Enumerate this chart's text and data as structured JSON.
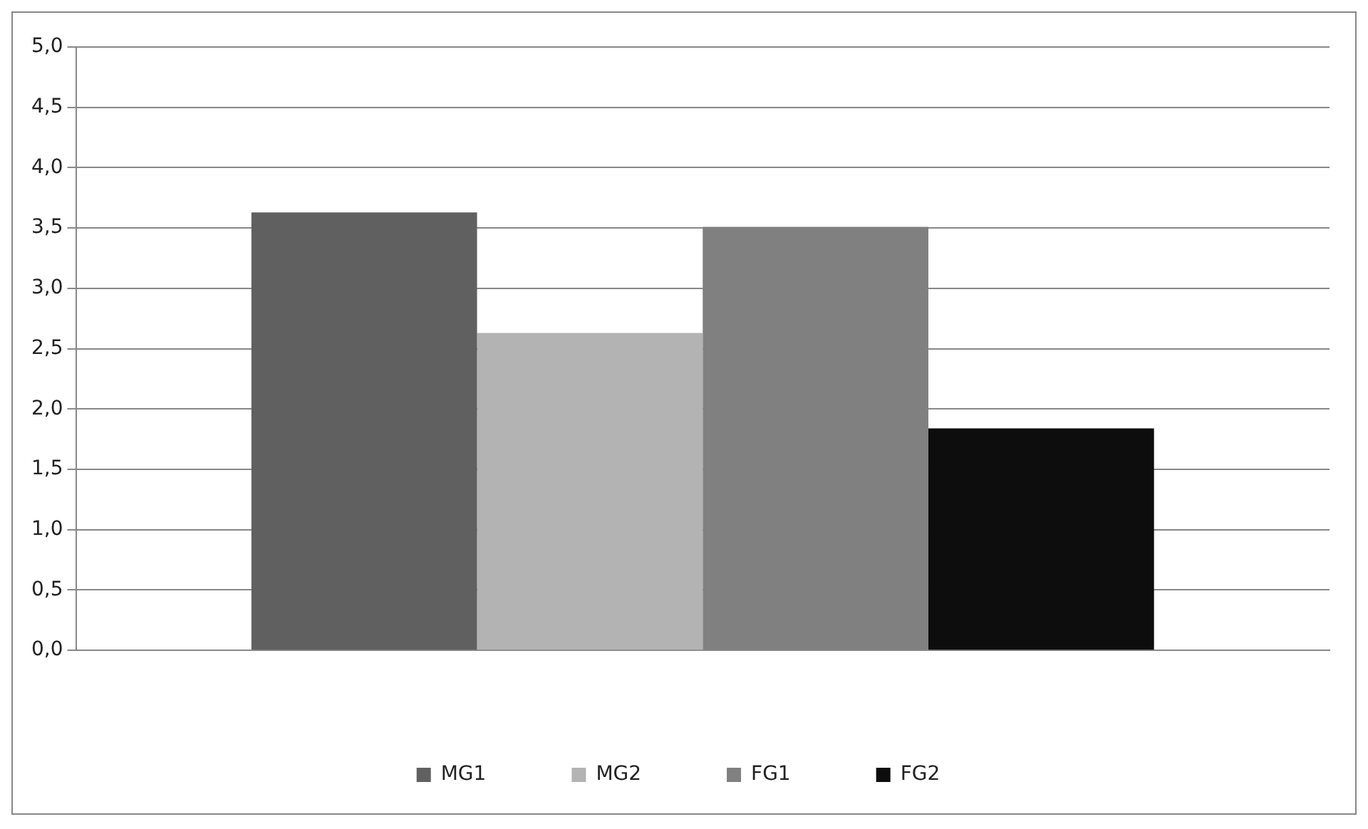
{
  "chart_data": {
    "type": "bar",
    "categories": [
      null
    ],
    "series": [
      {
        "name": "MG1",
        "color": "#606060",
        "values": [
          3.63
        ]
      },
      {
        "name": "MG2",
        "color": "#b3b3b3",
        "values": [
          2.63
        ]
      },
      {
        "name": "FG1",
        "color": "#808080",
        "values": [
          3.51
        ]
      },
      {
        "name": "FG2",
        "color": "#0d0d0d",
        "values": [
          1.84
        ]
      }
    ],
    "ylim": [
      0,
      5
    ],
    "yticks": [
      {
        "value": 0,
        "label": "0,0"
      },
      {
        "value": 0.5,
        "label": "0,5"
      },
      {
        "value": 1,
        "label": "1,0"
      },
      {
        "value": 1.5,
        "label": "1,5"
      },
      {
        "value": 2,
        "label": "2,0"
      },
      {
        "value": 2.5,
        "label": "2,5"
      },
      {
        "value": 3,
        "label": "3,0"
      },
      {
        "value": 3.5,
        "label": "3,5"
      },
      {
        "value": 4,
        "label": "4,0"
      },
      {
        "value": 4.5,
        "label": "4,5"
      },
      {
        "value": 5,
        "label": "5,0"
      }
    ],
    "grid": "y",
    "legend": "bottom"
  }
}
